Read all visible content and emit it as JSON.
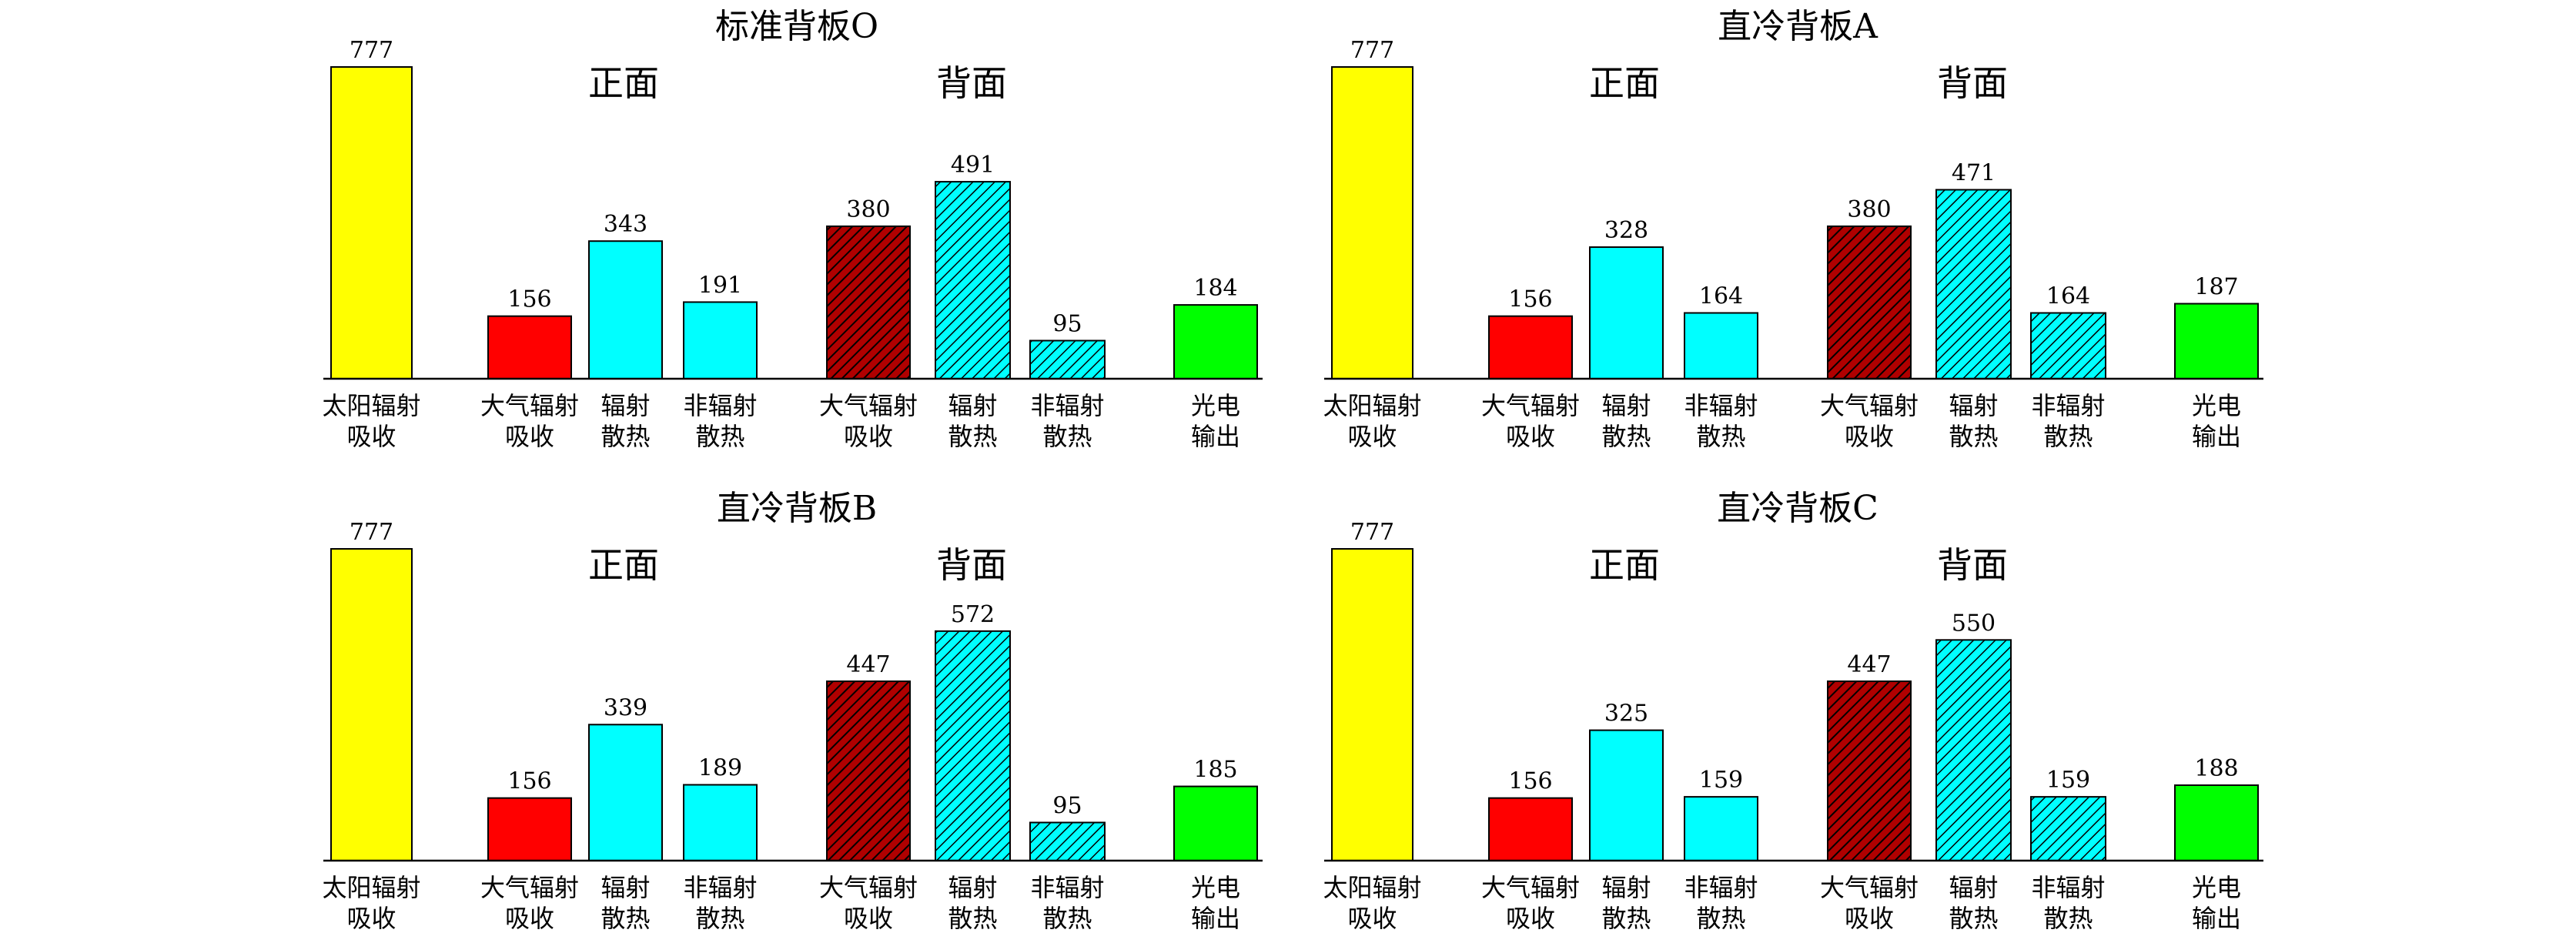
{
  "charts": [
    {
      "title": "标准背板O",
      "section_labels": [
        "正面",
        "背面"
      ],
      "categories": [
        [
          "太阳辐射",
          "吸收"
        ],
        [
          "大气辐射",
          "吸收"
        ],
        [
          "辐射",
          "散热"
        ],
        [
          "非辐射",
          "散热"
        ],
        [
          "大气辐射",
          "吸收"
        ],
        [
          "辐射",
          "散热"
        ],
        [
          "非辐射",
          "散热"
        ],
        [
          "光电",
          "输出"
        ]
      ],
      "values": [
        777,
        156,
        343,
        191,
        380,
        491,
        95,
        184
      ]
    },
    {
      "title": "直冷背板A",
      "section_labels": [
        "正面",
        "背面"
      ],
      "categories": [
        [
          "太阳辐射",
          "吸收"
        ],
        [
          "大气辐射",
          "吸收"
        ],
        [
          "辐射",
          "散热"
        ],
        [
          "非辐射",
          "散热"
        ],
        [
          "大气辐射",
          "吸收"
        ],
        [
          "辐射",
          "散热"
        ],
        [
          "非辐射",
          "散热"
        ],
        [
          "光电",
          "输出"
        ]
      ],
      "values": [
        777,
        156,
        328,
        164,
        380,
        471,
        164,
        187
      ]
    },
    {
      "title": "直冷背板B",
      "section_labels": [
        "正面",
        "背面"
      ],
      "categories": [
        [
          "太阳辐射",
          "吸收"
        ],
        [
          "大气辐射",
          "吸收"
        ],
        [
          "辐射",
          "散热"
        ],
        [
          "非辐射",
          "散热"
        ],
        [
          "大气辐射",
          "吸收"
        ],
        [
          "辐射",
          "散热"
        ],
        [
          "非辐射",
          "散热"
        ],
        [
          "光电",
          "输出"
        ]
      ],
      "values": [
        777,
        156,
        339,
        189,
        447,
        572,
        95,
        185
      ]
    },
    {
      "title": "直冷背板C",
      "section_labels": [
        "正面",
        "背面"
      ],
      "categories": [
        [
          "太阳辐射",
          "吸收"
        ],
        [
          "大气辐射",
          "吸收"
        ],
        [
          "辐射",
          "散热"
        ],
        [
          "非辐射",
          "散热"
        ],
        [
          "大气辐射",
          "吸收"
        ],
        [
          "辐射",
          "散热"
        ],
        [
          "非辐射",
          "散热"
        ],
        [
          "光电",
          "输出"
        ]
      ],
      "values": [
        777,
        156,
        325,
        159,
        447,
        550,
        159,
        188
      ]
    }
  ],
  "chart_data": [
    {
      "type": "bar",
      "title": "标准背板O",
      "categories": [
        "太阳辐射吸收",
        "大气辐射吸收",
        "辐射散热",
        "非辐射散热",
        "大气辐射吸收",
        "辐射散热",
        "非辐射散热",
        "光电输出"
      ],
      "values": [
        777,
        156,
        343,
        191,
        380,
        491,
        95,
        184
      ],
      "ylim": [
        0,
        800
      ],
      "grid": false
    },
    {
      "type": "bar",
      "title": "直冷背板A",
      "categories": [
        "太阳辐射吸收",
        "大气辐射吸收",
        "辐射散热",
        "非辐射散热",
        "大气辐射吸收",
        "辐射散热",
        "非辐射散热",
        "光电输出"
      ],
      "values": [
        777,
        156,
        328,
        164,
        380,
        471,
        164,
        187
      ],
      "ylim": [
        0,
        800
      ],
      "grid": false
    },
    {
      "type": "bar",
      "title": "直冷背板B",
      "categories": [
        "太阳辐射吸收",
        "大气辐射吸收",
        "辐射散热",
        "非辐射散热",
        "大气辐射吸收",
        "辐射散热",
        "非辐射散热",
        "光电输出"
      ],
      "values": [
        777,
        156,
        339,
        189,
        447,
        572,
        95,
        185
      ],
      "ylim": [
        0,
        800
      ],
      "grid": false
    },
    {
      "type": "bar",
      "title": "直冷背板C",
      "categories": [
        "太阳辐射吸收",
        "大气辐射吸收",
        "辐射散热",
        "非辐射散热",
        "大气辐射吸收",
        "辐射散热",
        "非辐射散热",
        "光电输出"
      ],
      "values": [
        777,
        156,
        325,
        159,
        447,
        550,
        159,
        188
      ],
      "ylim": [
        0,
        800
      ],
      "grid": false
    }
  ],
  "colors": {
    "solar": "#ffff00",
    "atmospheric": "#ff0000",
    "radiative": "#00ffff",
    "back_atmospheric": "#b00000",
    "photovoltaic": "#00ff00",
    "outline": "#000000"
  }
}
